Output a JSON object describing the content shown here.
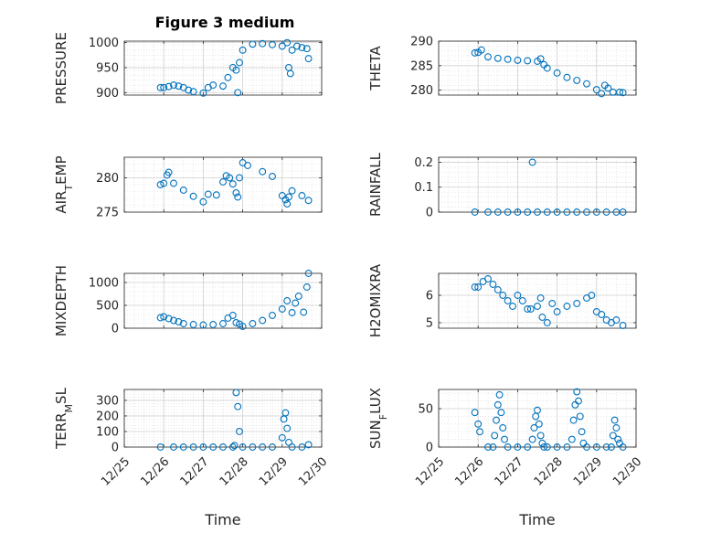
{
  "figure": {
    "title": "Figure 3 medium",
    "marker_color": "#0072BD",
    "marker": "open-circle"
  },
  "chart_data": [
    {
      "type": "scatter",
      "ylabel": "PRESSURE",
      "xlabel": "",
      "title": "Figure 3 medium",
      "yticks": [
        900,
        950,
        1000
      ],
      "ylim": [
        895,
        1003
      ],
      "grid": true,
      "x": [
        "12/25 22:00",
        "12/26 00:00",
        "12/26 03:00",
        "12/26 06:00",
        "12/26 09:00",
        "12/26 12:00",
        "12/26 15:00",
        "12/26 18:00",
        "12/27 00:00",
        "12/27 03:00",
        "12/27 06:00",
        "12/27 12:00",
        "12/27 15:00",
        "12/27 18:00",
        "12/27 20:00",
        "12/27 21:00",
        "12/27 22:00",
        "12/28 00:00",
        "12/28 06:00",
        "12/28 12:00",
        "12/28 18:00",
        "12/29 00:00",
        "12/29 03:00",
        "12/29 04:00",
        "12/29 05:00",
        "12/29 06:00",
        "12/29 09:00",
        "12/29 12:00",
        "12/29 15:00",
        "12/29 16:00"
      ],
      "values": [
        910,
        910,
        912,
        915,
        913,
        910,
        905,
        902,
        899,
        910,
        915,
        913,
        930,
        950,
        945,
        900,
        960,
        985,
        997,
        998,
        996,
        993,
        1000,
        950,
        938,
        985,
        993,
        990,
        988,
        968
      ]
    },
    {
      "type": "scatter",
      "ylabel": "THETA",
      "xlabel": "",
      "yticks": [
        280,
        285,
        290
      ],
      "ylim": [
        279,
        290
      ],
      "grid": true,
      "x": [
        "12/25 22:00",
        "12/26 00:00",
        "12/26 02:00",
        "12/26 06:00",
        "12/26 12:00",
        "12/26 18:00",
        "12/27 00:00",
        "12/27 06:00",
        "12/27 12:00",
        "12/27 14:00",
        "12/27 16:00",
        "12/27 18:00",
        "12/28 00:00",
        "12/28 06:00",
        "12/28 12:00",
        "12/28 18:00",
        "12/29 00:00",
        "12/29 03:00",
        "12/29 05:00",
        "12/29 07:00",
        "12/29 10:00",
        "12/29 14:00",
        "12/29 16:00"
      ],
      "values": [
        287.6,
        287.7,
        288.2,
        286.8,
        286.5,
        286.3,
        286.1,
        286.0,
        285.9,
        286.4,
        285.2,
        284.5,
        283.5,
        282.6,
        282.0,
        281.3,
        280.1,
        279.3,
        281.0,
        280.4,
        279.6,
        279.6,
        279.5
      ]
    },
    {
      "type": "scatter",
      "ylabel": "AIR_TEMP",
      "xlabel": "",
      "yticks": [
        275,
        280
      ],
      "ylim": [
        275,
        283
      ],
      "grid": true,
      "x": [
        "12/25 22:00",
        "12/26 00:00",
        "12/26 02:00",
        "12/26 03:00",
        "12/26 06:00",
        "12/26 12:00",
        "12/26 18:00",
        "12/27 00:00",
        "12/27 03:00",
        "12/27 08:00",
        "12/27 12:00",
        "12/27 14:00",
        "12/27 16:00",
        "12/27 18:00",
        "12/27 20:00",
        "12/27 21:00",
        "12/27 22:00",
        "12/28 00:00",
        "12/28 03:00",
        "12/28 12:00",
        "12/28 18:00",
        "12/29 00:00",
        "12/29 02:00",
        "12/29 03:00",
        "12/29 04:00",
        "12/29 06:00",
        "12/29 12:00",
        "12/29 16:00"
      ],
      "values": [
        279.0,
        279.2,
        280.4,
        280.8,
        279.2,
        278.2,
        277.3,
        276.5,
        277.6,
        277.5,
        279.4,
        280.3,
        280.0,
        279.1,
        277.8,
        277.2,
        280.0,
        282.2,
        281.8,
        280.9,
        280.2,
        277.4,
        276.8,
        276.2,
        277.2,
        278.1,
        277.4,
        276.7
      ]
    },
    {
      "type": "scatter",
      "ylabel": "RAINFALL",
      "xlabel": "",
      "yticks": [
        0,
        0.1,
        0.2
      ],
      "ylim": [
        0,
        0.22
      ],
      "grid": true,
      "x": [
        "12/25 22:00",
        "12/26 06:00",
        "12/26 12:00",
        "12/26 18:00",
        "12/27 00:00",
        "12/27 06:00",
        "12/27 09:00",
        "12/27 12:00",
        "12/27 18:00",
        "12/28 00:00",
        "12/28 06:00",
        "12/28 12:00",
        "12/28 18:00",
        "12/29 00:00",
        "12/29 06:00",
        "12/29 12:00",
        "12/29 16:00"
      ],
      "values": [
        0,
        0,
        0,
        0,
        0,
        0,
        0.2,
        0,
        0,
        0,
        0,
        0,
        0,
        0,
        0,
        0,
        0
      ]
    },
    {
      "type": "scatter",
      "ylabel": "MIXDEPTH",
      "xlabel": "",
      "yticks": [
        0,
        500,
        1000
      ],
      "ylim": [
        0,
        1200
      ],
      "grid": true,
      "x": [
        "12/25 22:00",
        "12/26 00:00",
        "12/26 03:00",
        "12/26 06:00",
        "12/26 09:00",
        "12/26 12:00",
        "12/26 18:00",
        "12/27 00:00",
        "12/27 06:00",
        "12/27 12:00",
        "12/27 15:00",
        "12/27 18:00",
        "12/27 20:00",
        "12/27 22:00",
        "12/28 00:00",
        "12/28 06:00",
        "12/28 12:00",
        "12/28 18:00",
        "12/29 00:00",
        "12/29 03:00",
        "12/29 06:00",
        "12/29 08:00",
        "12/29 10:00",
        "12/29 13:00",
        "12/29 15:00",
        "12/29 16:00"
      ],
      "values": [
        230,
        250,
        210,
        170,
        140,
        100,
        80,
        70,
        80,
        100,
        220,
        280,
        120,
        90,
        40,
        100,
        170,
        280,
        420,
        600,
        340,
        550,
        700,
        350,
        900,
        1200
      ]
    },
    {
      "type": "scatter",
      "ylabel": "H2OMIXRA",
      "xlabel": "",
      "yticks": [
        5,
        6
      ],
      "ylim": [
        4.8,
        6.8
      ],
      "grid": true,
      "x": [
        "12/25 22:00",
        "12/26 00:00",
        "12/26 03:00",
        "12/26 06:00",
        "12/26 09:00",
        "12/26 12:00",
        "12/26 15:00",
        "12/26 18:00",
        "12/26 21:00",
        "12/27 00:00",
        "12/27 03:00",
        "12/27 06:00",
        "12/27 08:00",
        "12/27 12:00",
        "12/27 14:00",
        "12/27 15:00",
        "12/27 18:00",
        "12/27 21:00",
        "12/28 00:00",
        "12/28 06:00",
        "12/28 12:00",
        "12/28 18:00",
        "12/28 21:00",
        "12/29 00:00",
        "12/29 03:00",
        "12/29 06:00",
        "12/29 09:00",
        "12/29 12:00",
        "12/29 16:00"
      ],
      "values": [
        6.3,
        6.3,
        6.5,
        6.6,
        6.4,
        6.2,
        6.0,
        5.8,
        5.6,
        6.0,
        5.8,
        5.5,
        5.5,
        5.6,
        5.9,
        5.2,
        5.0,
        5.7,
        5.4,
        5.6,
        5.7,
        5.9,
        6.0,
        5.4,
        5.3,
        5.1,
        5.0,
        5.1,
        4.9
      ]
    },
    {
      "type": "scatter",
      "ylabel": "TERR_MSL",
      "xlabel": "Time",
      "yticks": [
        0,
        100,
        200,
        300
      ],
      "ylim": [
        0,
        370
      ],
      "xticks": [
        "12/25",
        "12/26",
        "12/27",
        "12/28",
        "12/29",
        "12/30"
      ],
      "grid": true,
      "x": [
        "12/25 22:00",
        "12/26 06:00",
        "12/26 12:00",
        "12/26 18:00",
        "12/27 00:00",
        "12/27 06:00",
        "12/27 12:00",
        "12/27 18:00",
        "12/27 19:00",
        "12/27 20:00",
        "12/27 21:00",
        "12/27 22:00",
        "12/28 00:00",
        "12/28 06:00",
        "12/28 12:00",
        "12/28 18:00",
        "12/29 00:00",
        "12/29 01:00",
        "12/29 02:00",
        "12/29 03:00",
        "12/29 04:00",
        "12/29 06:00",
        "12/29 12:00",
        "12/29 16:00"
      ],
      "values": [
        0,
        0,
        0,
        0,
        0,
        0,
        0,
        0,
        10,
        350,
        260,
        100,
        0,
        0,
        0,
        0,
        60,
        180,
        220,
        120,
        30,
        0,
        0,
        15
      ]
    },
    {
      "type": "scatter",
      "ylabel": "SUN_FLUX",
      "xlabel": "Time",
      "yticks": [
        0,
        50
      ],
      "ylim": [
        0,
        75
      ],
      "xticks": [
        "12/25",
        "12/26",
        "12/27",
        "12/28",
        "12/29",
        "12/30"
      ],
      "grid": true,
      "x": [
        "12/25 22:00",
        "12/26 00:00",
        "12/26 01:00",
        "12/26 06:00",
        "12/26 09:00",
        "12/26 10:00",
        "12/26 11:00",
        "12/26 12:00",
        "12/26 13:00",
        "12/26 14:00",
        "12/26 15:00",
        "12/26 16:00",
        "12/26 18:00",
        "12/27 00:00",
        "12/27 06:00",
        "12/27 09:00",
        "12/27 10:00",
        "12/27 11:00",
        "12/27 12:00",
        "12/27 13:00",
        "12/27 14:00",
        "12/27 15:00",
        "12/27 16:00",
        "12/27 18:00",
        "12/28 00:00",
        "12/28 06:00",
        "12/28 09:00",
        "12/28 10:00",
        "12/28 11:00",
        "12/28 12:00",
        "12/28 13:00",
        "12/28 14:00",
        "12/28 15:00",
        "12/28 16:00",
        "12/28 18:00",
        "12/29 00:00",
        "12/29 06:00",
        "12/29 09:00",
        "12/29 10:00",
        "12/29 11:00",
        "12/29 12:00",
        "12/29 13:00",
        "12/29 14:00",
        "12/29 16:00"
      ],
      "values": [
        45,
        30,
        20,
        0,
        0,
        15,
        35,
        55,
        68,
        45,
        25,
        10,
        0,
        0,
        0,
        10,
        25,
        40,
        48,
        30,
        15,
        5,
        0,
        0,
        0,
        0,
        10,
        35,
        55,
        72,
        60,
        40,
        20,
        5,
        0,
        0,
        0,
        0,
        15,
        35,
        25,
        10,
        5,
        0
      ]
    }
  ]
}
